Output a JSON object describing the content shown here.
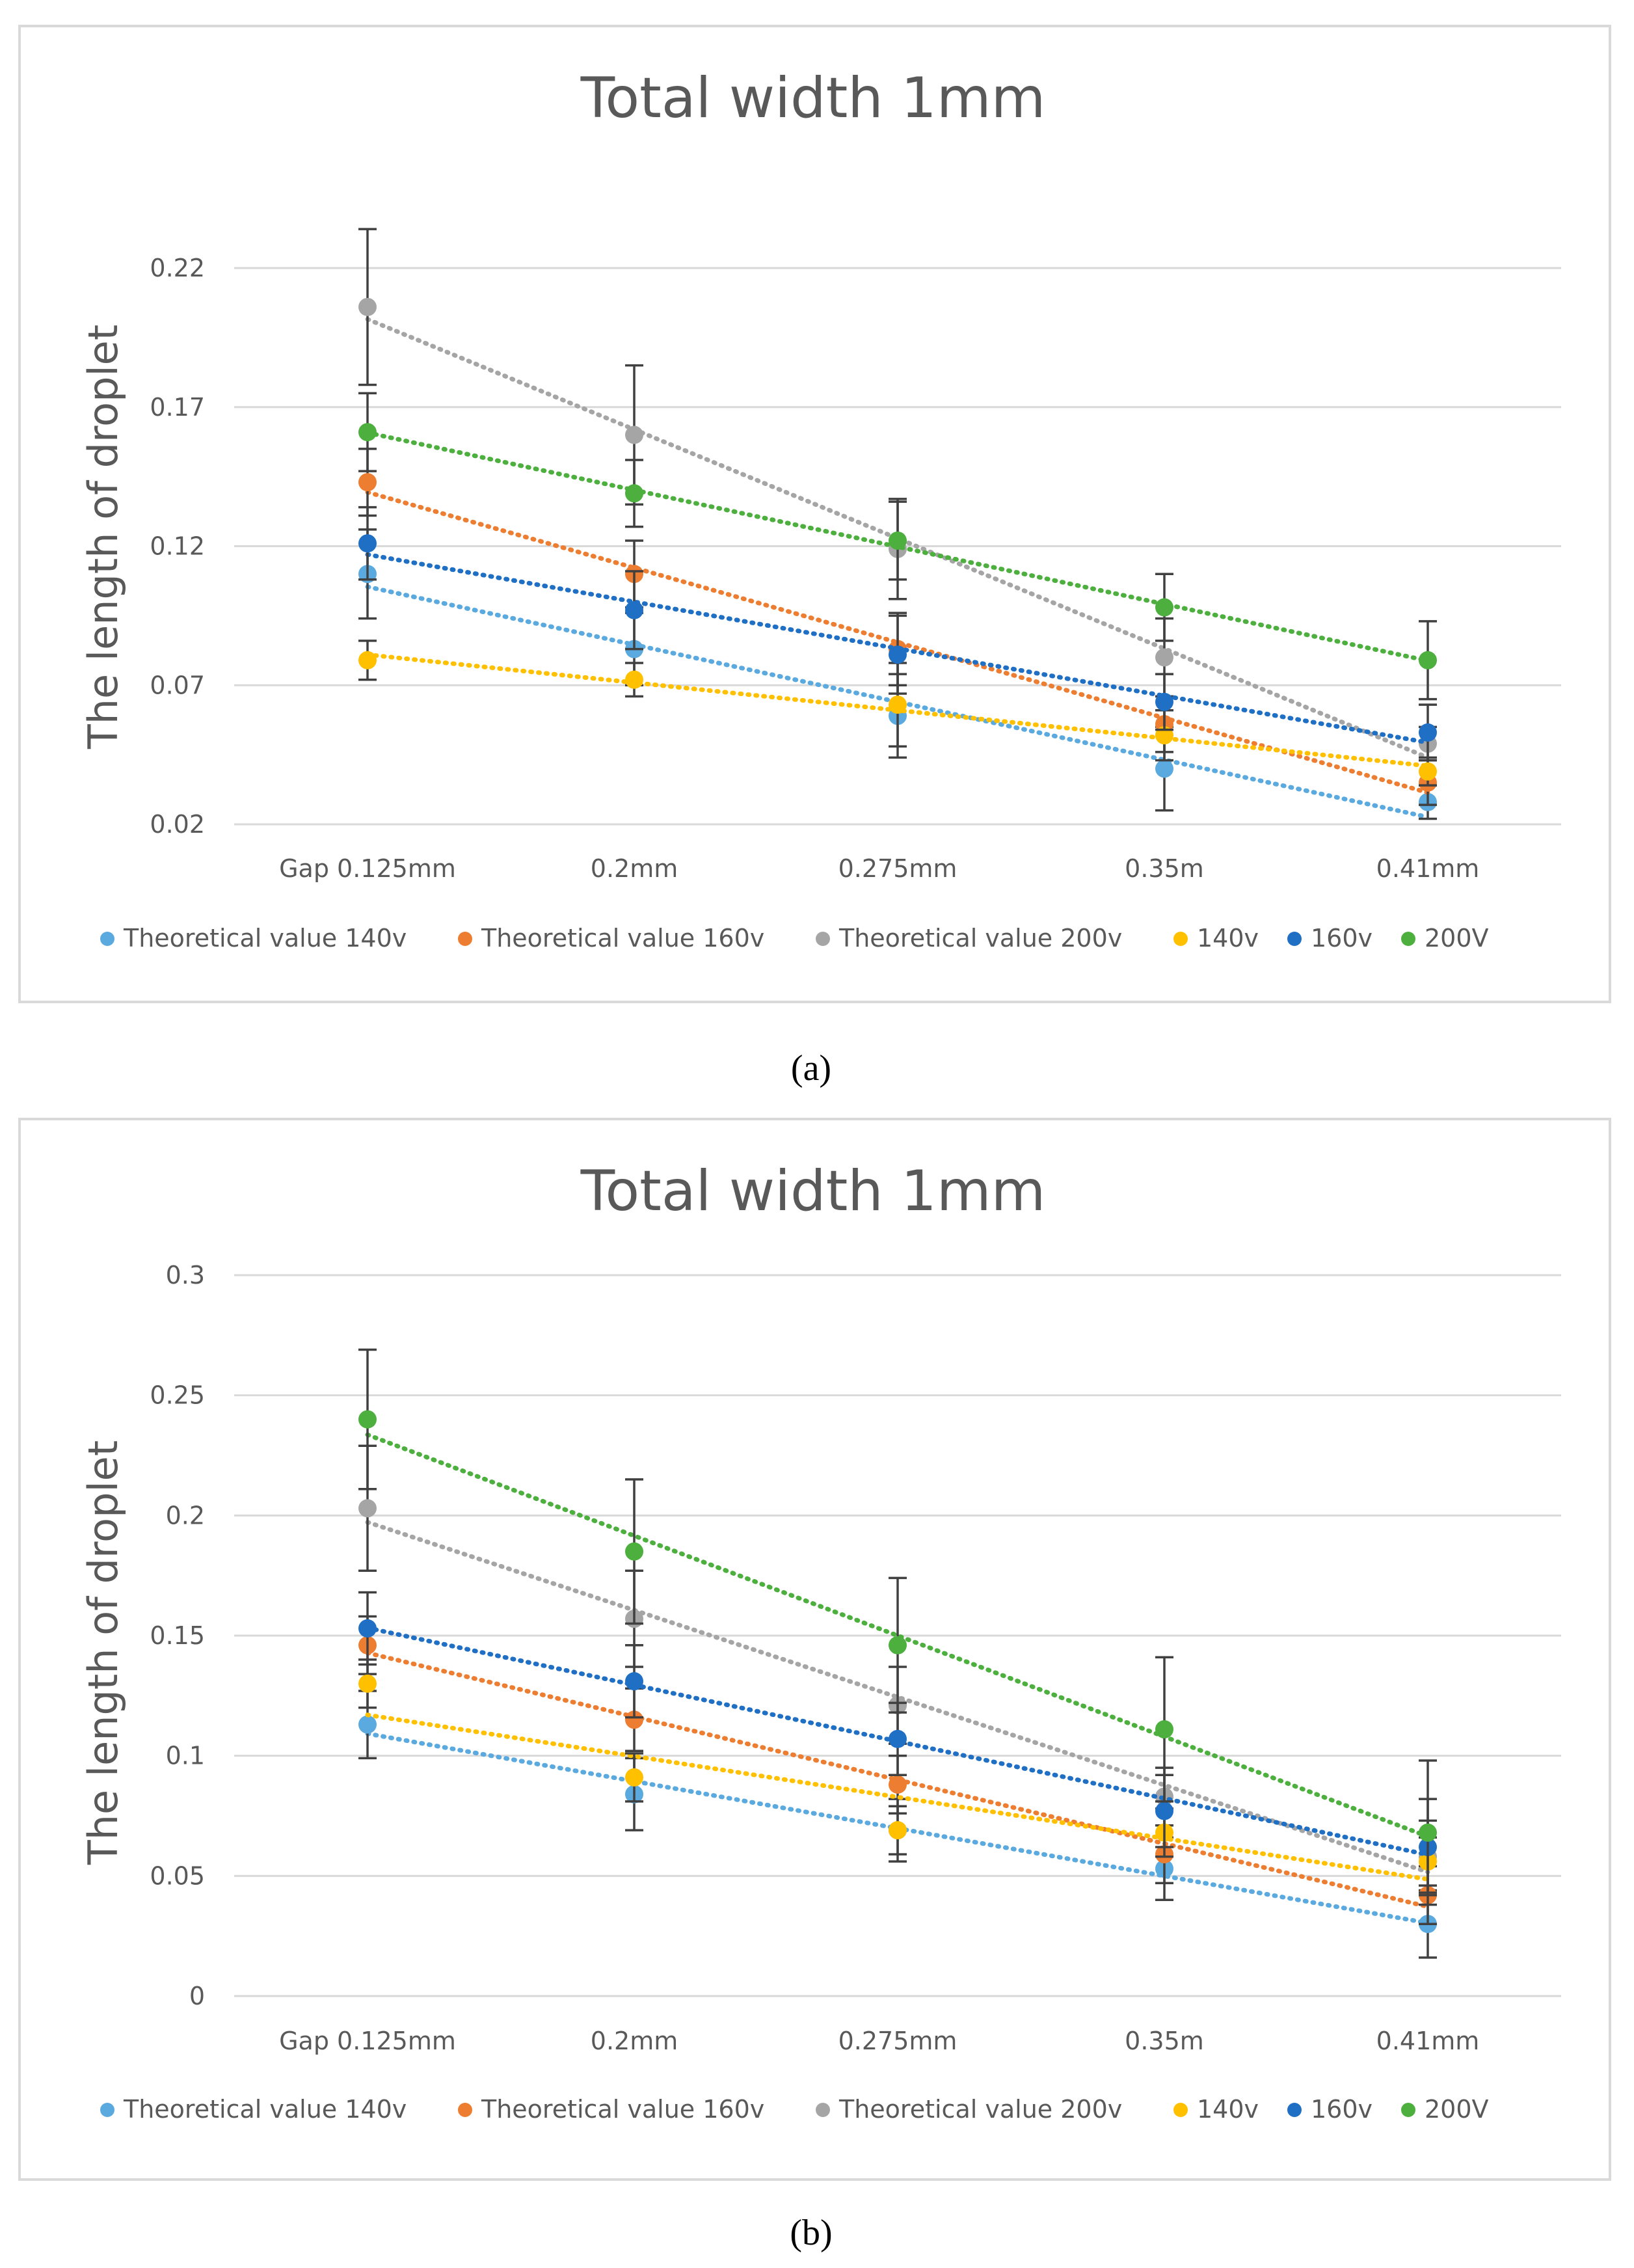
{
  "colors": {
    "Theoretical value 140v": "#5BAADF",
    "Theoretical value 160v": "#ED7D31",
    "Theoretical value 200v": "#A5A5A5",
    "140v": "#FFC000",
    "160v": "#1F6FC5",
    "200V": "#4CAF3E",
    "grid": "#d9d9d9",
    "errorbar": "#404040"
  },
  "chart_data": [
    {
      "type": "scatter",
      "caption": "(a)",
      "title": "Total width 1mm",
      "xlabel": "",
      "ylabel": "The length of droplet",
      "categories": [
        "Gap 0.125mm",
        "0.2mm",
        "0.275mm",
        "0.35m",
        "0.41mm"
      ],
      "ylim": [
        0.02,
        0.22
      ],
      "yticks": [
        "0.02",
        "0.07",
        "0.12",
        "0.17",
        "0.22"
      ],
      "legend": [
        "Theoretical value 140v",
        "Theoretical value 160v",
        "Theoretical value 200v",
        "140v",
        "160v",
        "200V"
      ],
      "legend_position": "bottom",
      "trendlines": "linear, dotted",
      "series": [
        {
          "name": "Theoretical value 140v",
          "values": [
            0.11,
            0.083,
            0.059,
            0.04,
            0.028
          ],
          "error": [
            0.016,
            0.013,
            0.015,
            0.015,
            0.006
          ]
        },
        {
          "name": "Theoretical value 160v",
          "values": [
            0.143,
            0.11,
            0.083,
            0.056,
            0.035
          ],
          "error": [
            0.012,
            0.012,
            0.013,
            0.01,
            0.008
          ]
        },
        {
          "name": "Theoretical value 200v",
          "values": [
            0.206,
            0.16,
            0.119,
            0.08,
            0.049
          ],
          "error": [
            0.028,
            0.025,
            0.018,
            0.014,
            0.006
          ]
        },
        {
          "name": "140v",
          "values": [
            0.079,
            0.072,
            0.063,
            0.052,
            0.039
          ],
          "error": [
            0.007,
            0.006,
            0.015,
            0.009,
            0.005
          ]
        },
        {
          "name": "160v",
          "values": [
            0.121,
            0.097,
            0.081,
            0.064,
            0.053
          ],
          "error": [
            0.013,
            0.014,
            0.014,
            0.01,
            0.01
          ]
        },
        {
          "name": "200V",
          "values": [
            0.161,
            0.139,
            0.122,
            0.098,
            0.079
          ],
          "error": [
            0.014,
            0.012,
            0.014,
            0.012,
            0.014
          ]
        }
      ]
    },
    {
      "type": "scatter",
      "caption": "(b)",
      "title": "Total width 1mm",
      "xlabel": "",
      "ylabel": "The length of droplet",
      "categories": [
        "Gap 0.125mm",
        "0.2mm",
        "0.275mm",
        "0.35m",
        "0.41mm"
      ],
      "ylim": [
        0,
        0.3
      ],
      "yticks": [
        "0",
        "0.05",
        "0.1",
        "0.15",
        "0.2",
        "0.25",
        "0.3"
      ],
      "legend": [
        "Theoretical value 140v",
        "Theoretical value 160v",
        "Theoretical value 200v",
        "140v",
        "160v",
        "200V"
      ],
      "legend_position": "bottom",
      "trendlines": "linear, dotted",
      "series": [
        {
          "name": "Theoretical value 140v",
          "values": [
            0.113,
            0.084,
            0.069,
            0.053,
            0.03
          ],
          "error": [
            0.014,
            0.015,
            0.013,
            0.013,
            0.014
          ]
        },
        {
          "name": "Theoretical value 160v",
          "values": [
            0.146,
            0.115,
            0.088,
            0.059,
            0.042
          ],
          "error": [
            0.012,
            0.013,
            0.012,
            0.012,
            0.012
          ]
        },
        {
          "name": "Theoretical value 200v",
          "values": [
            0.203,
            0.157,
            0.121,
            0.083,
            0.058
          ],
          "error": [
            0.026,
            0.02,
            0.016,
            0.012,
            0.015
          ]
        },
        {
          "name": "140v",
          "values": [
            0.13,
            0.091,
            0.069,
            0.068,
            0.056
          ],
          "error": [
            0.01,
            0.01,
            0.01,
            0.01,
            0.01
          ]
        },
        {
          "name": "160v",
          "values": [
            0.153,
            0.131,
            0.107,
            0.077,
            0.062
          ],
          "error": [
            0.015,
            0.015,
            0.015,
            0.015,
            0.02
          ]
        },
        {
          "name": "200V",
          "values": [
            0.24,
            0.185,
            0.146,
            0.111,
            0.068
          ],
          "error": [
            0.029,
            0.03,
            0.028,
            0.03,
            0.03
          ]
        }
      ]
    }
  ]
}
